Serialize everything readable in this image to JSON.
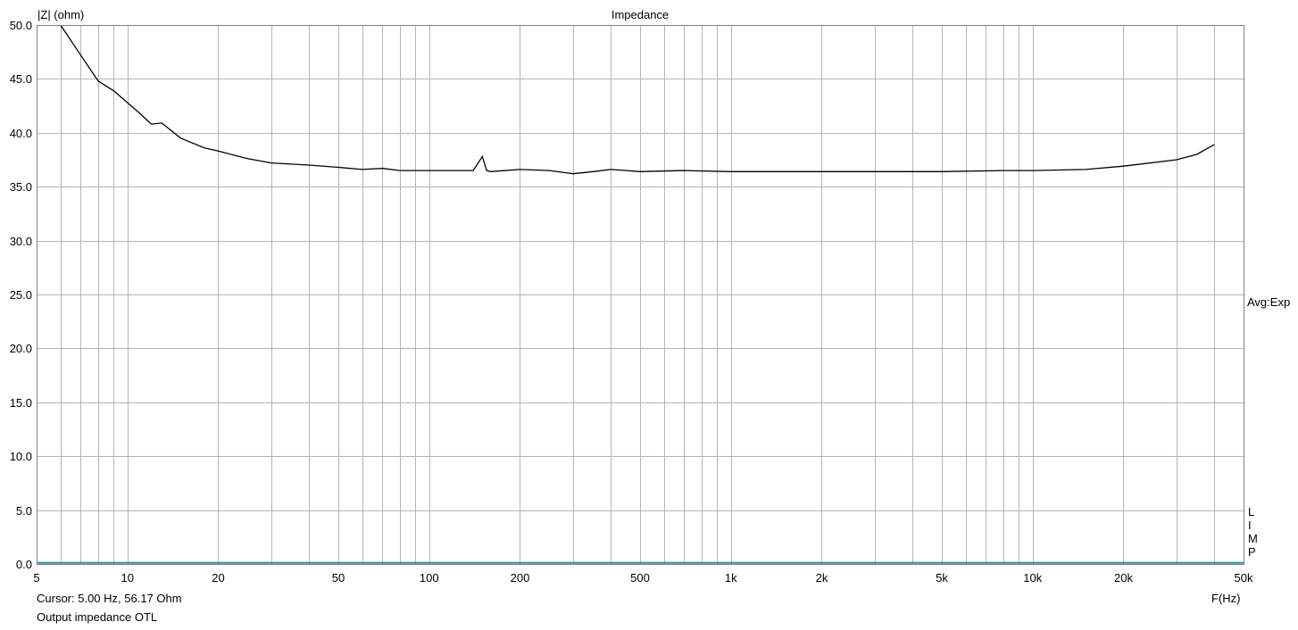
{
  "chart_data": {
    "type": "line",
    "title": "Impedance",
    "ylabel": "|Z| (ohm)",
    "xlabel": "F(Hz)",
    "xscale": "log",
    "xlim": [
      5,
      50000
    ],
    "ylim": [
      0,
      50
    ],
    "grid": true,
    "y_ticks": [
      "0.0",
      "5.0",
      "10.0",
      "15.0",
      "20.0",
      "25.0",
      "30.0",
      "35.0",
      "40.0",
      "45.0",
      "50.0"
    ],
    "x_tick_labels": [
      {
        "value": 5,
        "label": "5"
      },
      {
        "value": 10,
        "label": "10"
      },
      {
        "value": 20,
        "label": "20"
      },
      {
        "value": 50,
        "label": "50"
      },
      {
        "value": 100,
        "label": "100"
      },
      {
        "value": 200,
        "label": "200"
      },
      {
        "value": 500,
        "label": "500"
      },
      {
        "value": 1000,
        "label": "1k"
      },
      {
        "value": 2000,
        "label": "2k"
      },
      {
        "value": 5000,
        "label": "5k"
      },
      {
        "value": 10000,
        "label": "10k"
      },
      {
        "value": 20000,
        "label": "20k"
      },
      {
        "value": 50000,
        "label": "50k"
      }
    ],
    "series": [
      {
        "color": "#000000",
        "x": [
          6,
          7,
          8,
          9,
          10,
          11,
          12,
          13,
          15,
          18,
          20,
          25,
          30,
          40,
          50,
          60,
          70,
          80,
          100,
          120,
          140,
          150,
          155,
          160,
          200,
          250,
          300,
          350,
          400,
          450,
          500,
          700,
          1000,
          1500,
          2000,
          3000,
          5000,
          8000,
          10000,
          15000,
          20000,
          30000,
          35000,
          40000
        ],
        "y": [
          50.0,
          47.2,
          44.8,
          43.9,
          42.8,
          41.8,
          40.8,
          40.9,
          39.5,
          38.6,
          38.3,
          37.6,
          37.2,
          37.0,
          36.8,
          36.6,
          36.7,
          36.5,
          36.5,
          36.5,
          36.5,
          37.8,
          36.5,
          36.4,
          36.6,
          36.5,
          36.2,
          36.4,
          36.6,
          36.5,
          36.4,
          36.5,
          36.4,
          36.4,
          36.4,
          36.4,
          36.4,
          36.5,
          36.5,
          36.6,
          36.9,
          37.5,
          38.0,
          38.9
        ]
      },
      {
        "color": "#2f8f8f",
        "x": [
          5,
          50000
        ],
        "y": [
          0.1,
          0.1
        ]
      }
    ]
  },
  "title": "Impedance",
  "ylabel": "|Z| (ohm)",
  "xunit": "F(Hz)",
  "avg_label": "Avg:Exp",
  "side_letters": [
    "L",
    "I",
    "M",
    "P"
  ],
  "cursor_text": "Cursor: 5.00 Hz, 56.17 Ohm",
  "caption": "Output impedance OTL",
  "colors": {
    "grid": "#b4b4b4",
    "frame": "#808080",
    "trace": "#000000",
    "baseline": "#2f8f8f"
  }
}
